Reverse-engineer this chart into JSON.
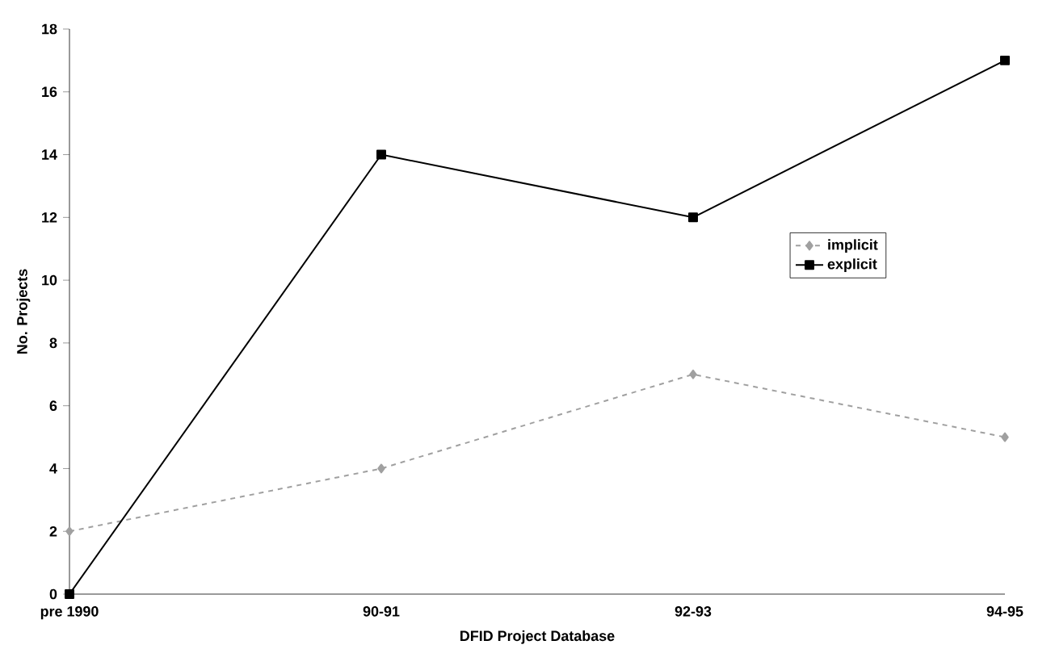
{
  "chart_data": {
    "type": "line",
    "xlabel": "DFID Project Database",
    "ylabel": "No. Projects",
    "categories": [
      "pre 1990",
      "90-91",
      "92-93",
      "94-95"
    ],
    "series": [
      {
        "name": "implicit",
        "color": "#a0a0a0",
        "values": [
          2,
          4,
          7,
          5
        ],
        "marker": "diamond",
        "line_style": "dashed"
      },
      {
        "name": "explicit",
        "color": "#000000",
        "values": [
          0,
          14,
          12,
          17
        ],
        "marker": "square",
        "line_style": "solid"
      }
    ],
    "ylim": [
      0,
      18
    ],
    "yticks": [
      0,
      2,
      4,
      6,
      8,
      10,
      12,
      14,
      16,
      18
    ],
    "grid": false,
    "legend": "right"
  }
}
